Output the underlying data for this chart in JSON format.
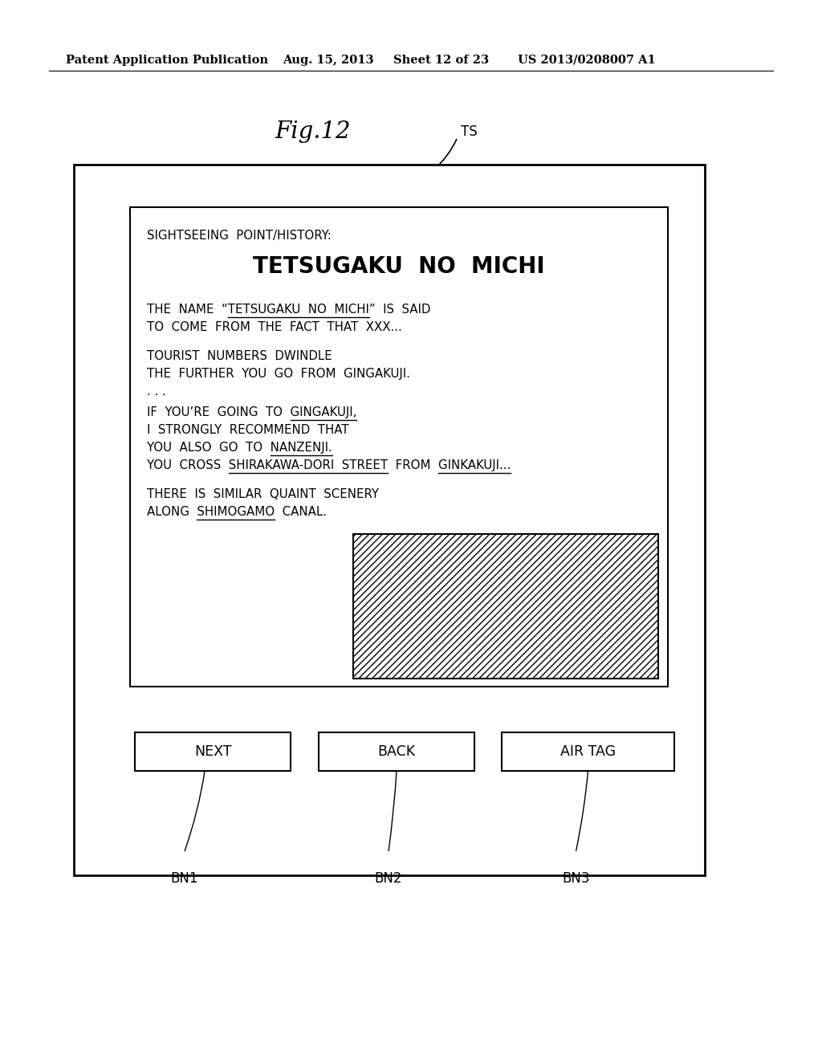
{
  "bg_color": "#ffffff",
  "header_text": "Patent Application Publication",
  "header_date": "Aug. 15, 2013",
  "header_sheet": "Sheet 12 of 23",
  "header_patent": "US 2013/0208007 A1",
  "fig_label": "Fig.12",
  "ts_label": "TS",
  "sightseeing_label": "SIGHTSEEING  POINT/HISTORY:",
  "title_text": "TETSUGAKU  NO  MICHI",
  "line1a_plain": "THE NAME “TETSUGAKU NO MICHI” IS SAID",
  "line1b": "TO  COME  FROM  THE  FACT  THAT  XXX...",
  "line2a": "TOURIST  NUMBERS  DWINDLE",
  "line2b": "THE  FURTHER  YOU  GO  FROM  GINGAKUJI.",
  "line3": ". . .",
  "line4a": "IF  YOU’RE  GOING  TO  GINGAKUJI,",
  "line4b": "I  STRONGLY  RECOMMEND  THAT",
  "line4c": "YOU  ALSO  GO  TO  NANZENJI.",
  "line4d": "YOU  CROSS  SHIRAKAWA-DORI  STREET  FROM  GINKAKUJI...",
  "line5a": "THERE  IS  SIMILAR  QUAINT  SCENERY",
  "line5b": "ALONG  SHIMOGAMO  CANAL.",
  "btn_next": "NEXT",
  "btn_back": "BACK",
  "btn_airtag": "AIR TAG",
  "bn1": "BN1",
  "bn2": "BN2",
  "bn3": "BN3"
}
